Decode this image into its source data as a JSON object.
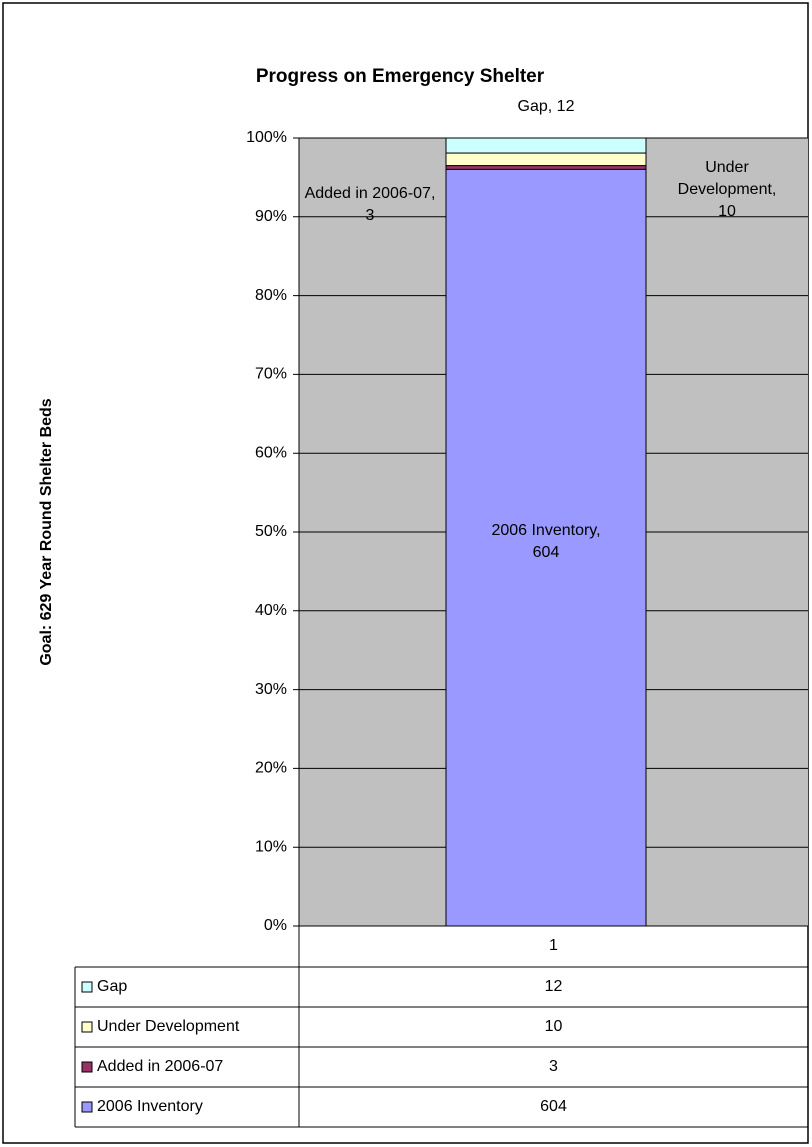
{
  "chart_data": {
    "type": "bar",
    "stacking": "percent",
    "title": "Progress on Emergency Shelter",
    "y_label": "Goal: 629 Year Round Shelter Beds",
    "categories": [
      "1"
    ],
    "series": [
      {
        "name": "2006 Inventory",
        "color": "#9999ff",
        "values": [
          604
        ],
        "value_labels": [
          "2006 Inventory, 604"
        ]
      },
      {
        "name": "Added in 2006-07",
        "color": "#993366",
        "values": [
          3
        ],
        "value_labels": [
          "Added in 2006-07, 3"
        ]
      },
      {
        "name": "Under Development",
        "color": "#ffffcc",
        "values": [
          10
        ],
        "value_labels": [
          "Under Development, 10"
        ]
      },
      {
        "name": "Gap",
        "color": "#ccffff",
        "values": [
          12
        ],
        "value_labels": [
          "Gap, 12"
        ]
      }
    ],
    "ylim": [
      0,
      100
    ],
    "yticks": [
      {
        "value": 0,
        "label": "0%"
      },
      {
        "value": 10,
        "label": "10%"
      },
      {
        "value": 20,
        "label": "20%"
      },
      {
        "value": 30,
        "label": "30%"
      },
      {
        "value": 40,
        "label": "40%"
      },
      {
        "value": 50,
        "label": "50%"
      },
      {
        "value": 60,
        "label": "60%"
      },
      {
        "value": 70,
        "label": "70%"
      },
      {
        "value": 80,
        "label": "80%"
      },
      {
        "value": 90,
        "label": "90%"
      },
      {
        "value": 100,
        "label": "100%"
      }
    ],
    "grid": true,
    "plot_background": "#c0c0c0"
  }
}
